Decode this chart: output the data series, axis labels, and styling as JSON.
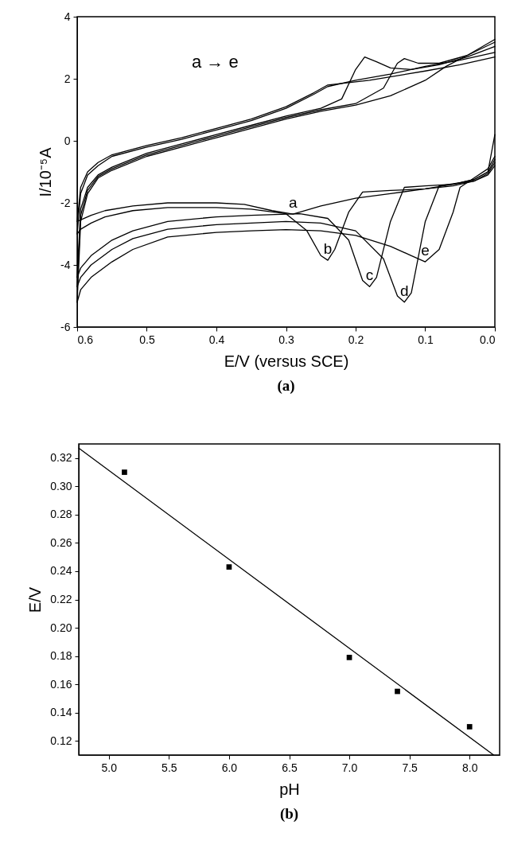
{
  "chart_data": [
    {
      "type": "line",
      "title": "(a)",
      "xlabel": "E/V (versus SCE)",
      "ylabel": "I/10⁻⁵A",
      "xlim": [
        0.6,
        0.0
      ],
      "ylim": [
        -6,
        4
      ],
      "xticks": [
        0.6,
        0.5,
        0.4,
        0.3,
        0.2,
        0.1,
        {
          "value": 0,
          "label": "0.0"
        }
      ],
      "yticks": [
        -6,
        -4,
        -2,
        0,
        2,
        4
      ],
      "series": [
        {
          "color": "#000000",
          "x": [
            0.6,
            0.595,
            0.585,
            0.57,
            0.55,
            0.5,
            0.45,
            0.4,
            0.35,
            0.3,
            0.26,
            0.24,
            0.22,
            0.18,
            0.14,
            0.1,
            0.05,
            0.0
          ],
          "values": [
            -2.6,
            -1.5,
            -1.0,
            -0.7,
            -0.45,
            -0.15,
            0.1,
            0.4,
            0.7,
            1.1,
            1.55,
            1.8,
            1.85,
            1.95,
            2.1,
            2.25,
            2.45,
            2.7
          ]
        },
        {
          "color": "#000000",
          "x": [
            0.0,
            0.01,
            0.03,
            0.06,
            0.1,
            0.15,
            0.2,
            0.25,
            0.29,
            0.32,
            0.36,
            0.4,
            0.47,
            0.52,
            0.56,
            0.58,
            0.595,
            0.6
          ],
          "values": [
            0.2,
            -1.0,
            -1.25,
            -1.4,
            -1.55,
            -1.7,
            -1.85,
            -2.1,
            -2.36,
            -2.25,
            -2.05,
            -2.0,
            -2.0,
            -2.1,
            -2.25,
            -2.4,
            -2.55,
            -2.6
          ]
        },
        {
          "color": "#000000",
          "x": [
            0.6,
            0.595,
            0.585,
            0.57,
            0.55,
            0.5,
            0.45,
            0.4,
            0.35,
            0.3,
            0.26,
            0.24,
            0.2,
            0.15,
            0.1,
            0.05,
            0.0
          ],
          "values": [
            -3.0,
            -1.7,
            -1.1,
            -0.8,
            -0.5,
            -0.2,
            0.05,
            0.35,
            0.65,
            1.05,
            1.5,
            1.75,
            1.95,
            2.15,
            2.4,
            2.6,
            2.85
          ]
        },
        {
          "color": "#000000",
          "x": [
            0.0,
            0.01,
            0.03,
            0.06,
            0.1,
            0.15,
            0.19,
            0.21,
            0.23,
            0.24,
            0.25,
            0.27,
            0.3,
            0.35,
            0.4,
            0.47,
            0.52,
            0.56,
            0.58,
            0.595,
            0.6
          ],
          "values": [
            -0.7,
            -1.05,
            -1.3,
            -1.45,
            -1.55,
            -1.6,
            -1.65,
            -2.3,
            -3.5,
            -3.85,
            -3.7,
            -2.9,
            -2.35,
            -2.2,
            -2.15,
            -2.15,
            -2.25,
            -2.45,
            -2.65,
            -2.85,
            -3.0
          ]
        },
        {
          "color": "#000000",
          "x": [
            0.6,
            0.595,
            0.585,
            0.57,
            0.55,
            0.5,
            0.45,
            0.4,
            0.35,
            0.3,
            0.25,
            0.22,
            0.2,
            0.187,
            0.17,
            0.15,
            0.12,
            0.08,
            0.04,
            0.0
          ],
          "values": [
            -4.4,
            -2.2,
            -1.5,
            -1.1,
            -0.85,
            -0.4,
            -0.1,
            0.2,
            0.5,
            0.8,
            1.05,
            1.35,
            2.3,
            2.7,
            2.55,
            2.35,
            2.3,
            2.45,
            2.7,
            3.04
          ]
        },
        {
          "color": "#000000",
          "x": [
            0.0,
            0.01,
            0.03,
            0.06,
            0.1,
            0.13,
            0.15,
            0.17,
            0.18,
            0.19,
            0.21,
            0.24,
            0.28,
            0.35,
            0.4,
            0.47,
            0.52,
            0.55,
            0.58,
            0.595,
            0.6
          ],
          "values": [
            -0.8,
            -1.1,
            -1.3,
            -1.4,
            -1.45,
            -1.5,
            -2.6,
            -4.4,
            -4.7,
            -4.5,
            -3.2,
            -2.5,
            -2.35,
            -2.4,
            -2.45,
            -2.6,
            -2.9,
            -3.2,
            -3.7,
            -4.1,
            -4.4
          ]
        },
        {
          "color": "#000000",
          "x": [
            0.6,
            0.595,
            0.585,
            0.57,
            0.55,
            0.5,
            0.45,
            0.4,
            0.35,
            0.3,
            0.25,
            0.2,
            0.16,
            0.14,
            0.13,
            0.11,
            0.08,
            0.04,
            0.0
          ],
          "values": [
            -4.7,
            -2.4,
            -1.6,
            -1.15,
            -0.9,
            -0.45,
            -0.15,
            0.15,
            0.45,
            0.75,
            1.0,
            1.2,
            1.7,
            2.5,
            2.65,
            2.5,
            2.5,
            2.75,
            3.18
          ]
        },
        {
          "color": "#000000",
          "x": [
            0.0,
            0.01,
            0.03,
            0.05,
            0.08,
            0.1,
            0.12,
            0.13,
            0.14,
            0.16,
            0.2,
            0.25,
            0.3,
            0.35,
            0.4,
            0.47,
            0.52,
            0.55,
            0.58,
            0.595,
            0.6
          ],
          "values": [
            -0.6,
            -1.0,
            -1.25,
            -1.35,
            -1.45,
            -2.6,
            -4.9,
            -5.2,
            -5.0,
            -3.8,
            -2.9,
            -2.65,
            -2.6,
            -2.65,
            -2.7,
            -2.85,
            -3.15,
            -3.5,
            -4.0,
            -4.4,
            -4.7
          ]
        },
        {
          "color": "#000000",
          "x": [
            0.6,
            0.595,
            0.585,
            0.57,
            0.55,
            0.5,
            0.45,
            0.4,
            0.35,
            0.3,
            0.25,
            0.2,
            0.15,
            0.1,
            0.07,
            0.04,
            0.0
          ],
          "values": [
            -5.2,
            -2.6,
            -1.7,
            -1.2,
            -0.95,
            -0.5,
            -0.2,
            0.1,
            0.4,
            0.7,
            0.95,
            1.15,
            1.45,
            1.95,
            2.4,
            2.75,
            3.27
          ]
        },
        {
          "color": "#000000",
          "x": [
            0.0,
            0.01,
            0.03,
            0.05,
            0.06,
            0.08,
            0.1,
            0.12,
            0.15,
            0.2,
            0.25,
            0.3,
            0.35,
            0.4,
            0.47,
            0.52,
            0.55,
            0.58,
            0.595,
            0.6
          ],
          "values": [
            -0.5,
            -0.9,
            -1.2,
            -1.5,
            -2.3,
            -3.5,
            -3.9,
            -3.7,
            -3.4,
            -3.05,
            -2.9,
            -2.86,
            -2.9,
            -2.95,
            -3.1,
            -3.5,
            -3.9,
            -4.4,
            -4.8,
            -5.2
          ]
        }
      ],
      "annotations": [
        "a → e",
        {
          "text": "a",
          "x": 0.29,
          "y": -2.36
        },
        {
          "text": "b",
          "x": 0.24,
          "y": -3.85
        },
        {
          "text": "c",
          "x": 0.18,
          "y": -4.7
        },
        {
          "text": "d",
          "x": 0.13,
          "y": -5.2
        },
        {
          "text": "e",
          "x": 0.1,
          "y": -3.9
        }
      ]
    },
    {
      "type": "scatter",
      "title": "(b)",
      "xlabel": "pH",
      "ylabel": "E/V",
      "xlim": [
        4.75,
        8.25
      ],
      "ylim": [
        0.11,
        0.33
      ],
      "xticks": [
        {
          "value": 5,
          "label": "5.0"
        },
        5.5,
        {
          "value": 6,
          "label": "6.0"
        },
        6.5,
        {
          "value": 7,
          "label": "7.0"
        },
        7.5,
        {
          "value": 8,
          "label": "8.0"
        }
      ],
      "yticks": [
        0.12,
        0.14,
        0.16,
        0.18,
        {
          "value": 0.2,
          "label": "0.20"
        },
        0.22,
        0.24,
        0.26,
        0.28,
        {
          "value": 0.3,
          "label": "0.30"
        },
        0.32
      ],
      "series": [
        {
          "marker": "square",
          "color": "#000000",
          "x": [
            5.13,
            6.0,
            7.0,
            7.4,
            8.0
          ],
          "values": [
            0.31,
            0.243,
            0.179,
            0.155,
            0.13
          ]
        },
        {
          "type": "line",
          "color": "#000000",
          "x": [
            4.75,
            8.2
          ],
          "values": [
            0.327,
            0.11
          ]
        }
      ]
    }
  ]
}
